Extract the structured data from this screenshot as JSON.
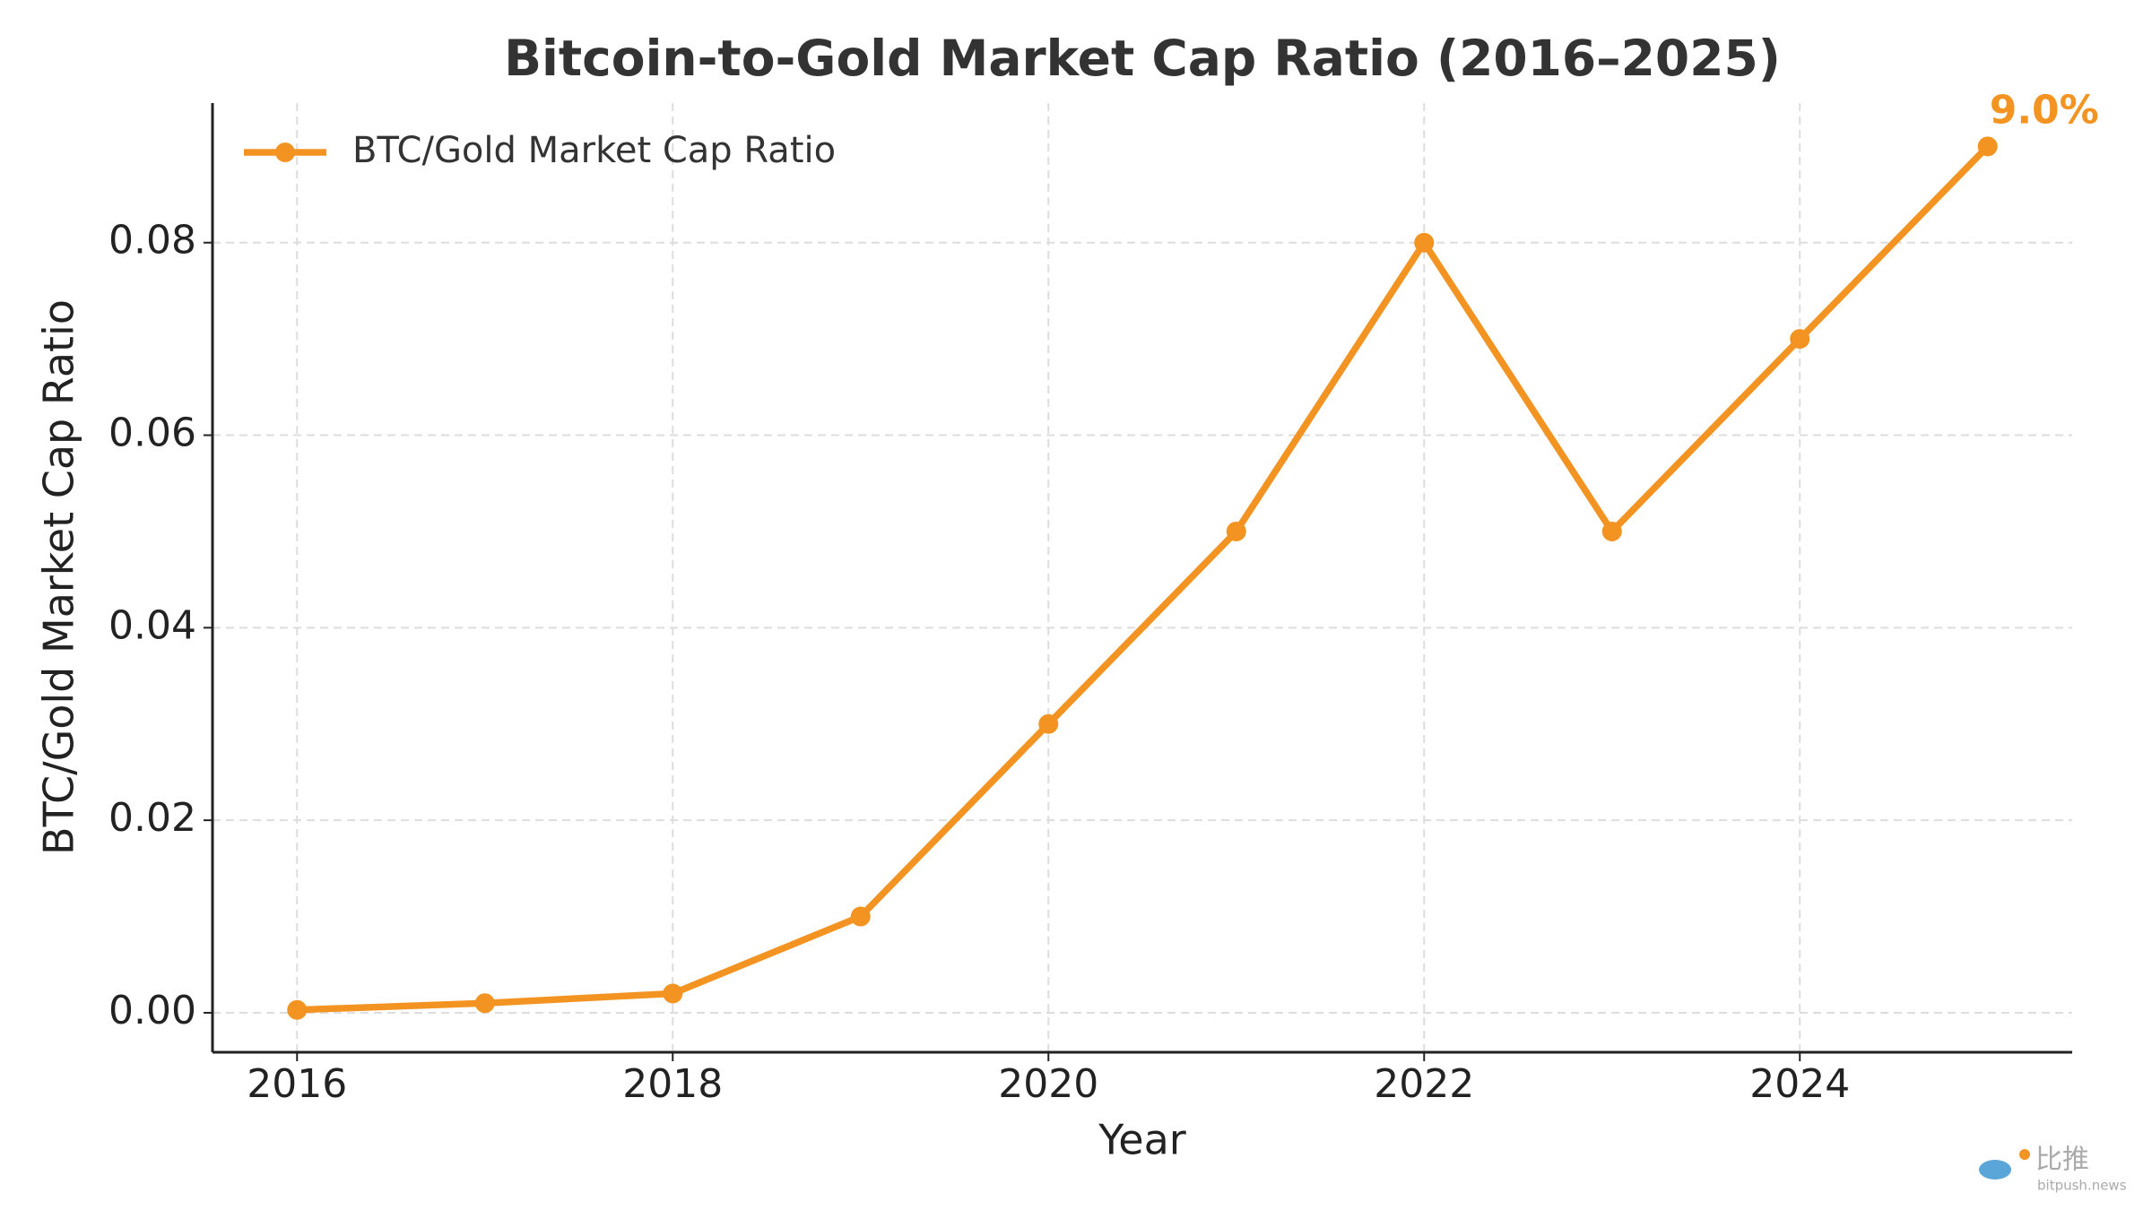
{
  "chart_data": {
    "type": "line",
    "title": "Bitcoin-to-Gold Market Cap Ratio (2016–2025)",
    "xlabel": "Year",
    "ylabel": "BTC/Gold Market Cap Ratio",
    "x": [
      2016,
      2017,
      2018,
      2019,
      2020,
      2021,
      2022,
      2023,
      2024,
      2025
    ],
    "series": [
      {
        "name": "BTC/Gold Market Cap Ratio",
        "color": "#f39422",
        "values": [
          0.0003,
          0.001,
          0.002,
          0.01,
          0.03,
          0.05,
          0.08,
          0.05,
          0.07,
          0.09
        ],
        "value_labels": [
          null,
          null,
          null,
          null,
          null,
          null,
          null,
          null,
          null,
          "9.0%"
        ]
      }
    ],
    "xlim": [
      2015.55,
      2025.45
    ],
    "ylim": [
      -0.0041,
      0.0945
    ],
    "xticks": [
      2016,
      2018,
      2020,
      2022,
      2024
    ],
    "yticks": [
      {
        "value": 0,
        "label": "0.00"
      },
      {
        "value": 0.02,
        "label": "0.02"
      },
      {
        "value": 0.04,
        "label": "0.04"
      },
      {
        "value": 0.06,
        "label": "0.06"
      },
      {
        "value": 0.08,
        "label": "0.08"
      }
    ],
    "grid": true,
    "legend": "upper left",
    "watermark": {
      "text": "比推",
      "url": "bitpush.news"
    }
  }
}
